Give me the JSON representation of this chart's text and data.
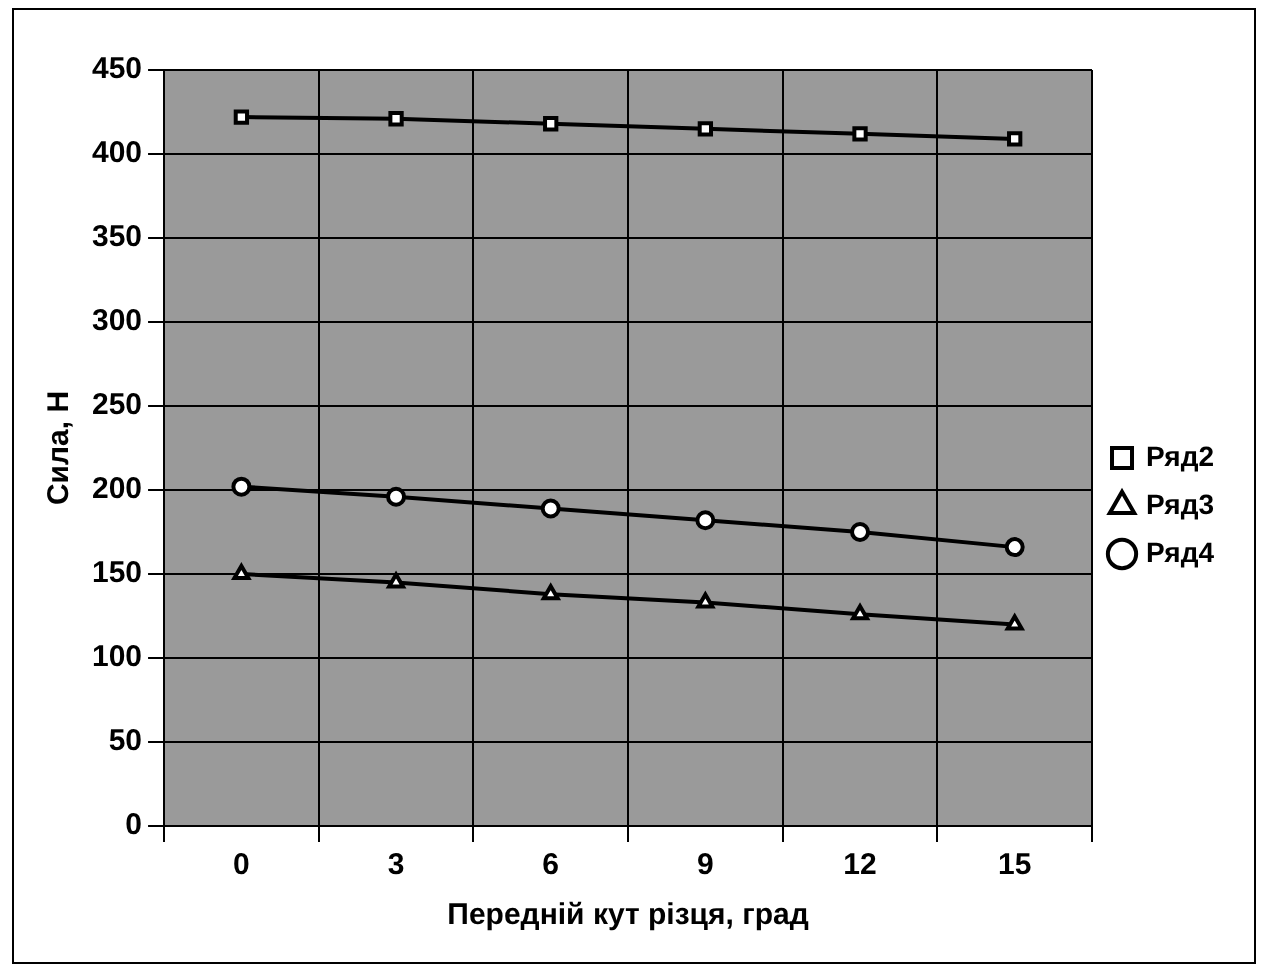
{
  "chart_data": {
    "type": "line",
    "xlabel": "Передній кут різця, град",
    "ylabel": "Сила, Н",
    "categories": [
      "0",
      "3",
      "6",
      "9",
      "12",
      "15"
    ],
    "series": [
      {
        "name": "Ряд2",
        "color": "#000000",
        "marker": "square",
        "values": [
          422,
          421,
          418,
          415,
          412,
          409
        ]
      },
      {
        "name": "Ряд3",
        "color": "#000000",
        "marker": "triangle",
        "values": [
          150,
          145,
          138,
          133,
          126,
          120
        ]
      },
      {
        "name": "Ряд4",
        "color": "#000000",
        "marker": "circle",
        "values": [
          202,
          196,
          189,
          182,
          175,
          166
        ]
      }
    ],
    "ylim": [
      0,
      450
    ],
    "yticks": [
      0,
      50,
      100,
      150,
      200,
      250,
      300,
      350,
      400,
      450
    ],
    "grid": true,
    "legend": "right"
  }
}
